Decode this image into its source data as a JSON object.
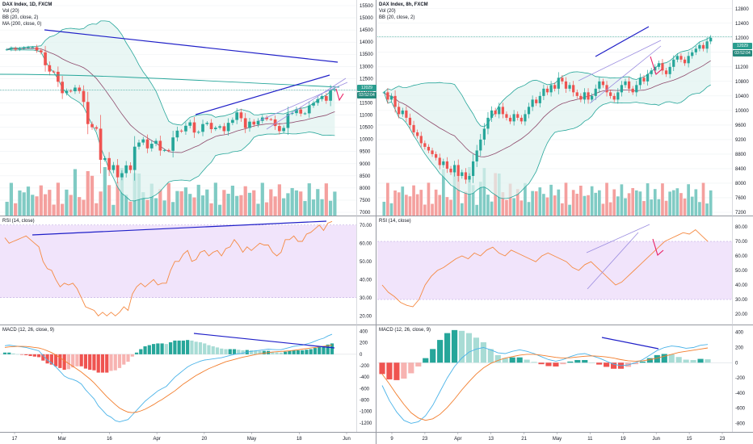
{
  "colors": {
    "up": "#26a69a",
    "down": "#ef5350",
    "vol_up": "#80cbc4",
    "vol_down": "#f4a09e",
    "bb_line": "#26a69a",
    "bb_fill": "#e0f2ef",
    "ma": "#8e4a6c",
    "trend": "#1f1fc8",
    "rsi": "#f58a42",
    "rsi_band": "#f1e4fb",
    "rsi_band_edge": "#b39ddb",
    "macd": "#4ab3e8",
    "signal": "#f27d2c",
    "hist_up": "#26a69a",
    "hist_up_light": "#a8dcd5",
    "hist_down": "#ef5350",
    "hist_down_light": "#f7b3b1",
    "grid": "#eef0f3",
    "separator": "#9598a1",
    "arrow": "#e91e63",
    "price_tag": "#2a9d8f"
  },
  "charts": [
    {
      "legend": {
        "title": "DAX Index, 1D, FXCM",
        "vol": "Vol (20)",
        "bb": "BB (20, close, 2)",
        "ma": "MA (200, close, 0)"
      },
      "price_tag": {
        "value": "12029",
        "time": "03:52:04"
      },
      "rsi_title": "RSI (14, close)",
      "macd_title": "MACD (12, 26, close, 9)",
      "x_ticks": [
        "17",
        "Mar",
        "16",
        "Apr",
        "20",
        "May",
        "18",
        "Jun"
      ],
      "price_ticks": [
        "15500",
        "15000",
        "14500",
        "14000",
        "13500",
        "13000",
        "12500",
        "12000",
        "11500",
        "11000",
        "10500",
        "10000",
        "9500",
        "9000",
        "8500",
        "8000",
        "7500",
        "7000"
      ],
      "rsi_ticks": [
        "70.00",
        "60.00",
        "50.00",
        "40.00",
        "30.00",
        "20.00"
      ],
      "macd_ticks": [
        "400",
        "200",
        "0",
        "-200",
        "-400",
        "-600",
        "-800",
        "-1000",
        "-1200"
      ]
    },
    {
      "legend": {
        "title": "DAX Index, 8h, FXCM",
        "vol": "Vol (20)",
        "bb": "BB (20, close, 2)"
      },
      "price_tag": {
        "value": "12029",
        "time": "03:52:04"
      },
      "rsi_title": "RSI (14, close)",
      "macd_title": "MACD (12, 26, close, 9)",
      "x_ticks": [
        "9",
        "23",
        "Apr",
        "13",
        "21",
        "May",
        "11",
        "19",
        "Jun",
        "15",
        "23"
      ],
      "price_ticks": [
        "12800",
        "12400",
        "12000",
        "11600",
        "11200",
        "10800",
        "10400",
        "10000",
        "9600",
        "9200",
        "8800",
        "8400",
        "8000",
        "7600",
        "7200"
      ],
      "rsi_ticks": [
        "80.00",
        "70.00",
        "60.00",
        "50.00",
        "40.00",
        "30.00",
        "20.00"
      ],
      "macd_ticks": [
        "400",
        "200",
        "0",
        "-200",
        "-400",
        "-600",
        "-800"
      ]
    }
  ],
  "chart_data": [
    {
      "type": "candlestick",
      "title": "DAX Index, 1D, FXCM",
      "x": [
        "2020-02-11",
        "2020-02-12",
        "2020-02-13",
        "2020-02-14",
        "2020-02-17",
        "2020-02-18",
        "2020-02-19",
        "2020-02-20",
        "2020-02-21",
        "2020-02-24",
        "2020-02-25",
        "2020-02-26",
        "2020-02-27",
        "2020-02-28",
        "2020-03-02",
        "2020-03-03",
        "2020-03-04",
        "2020-03-05",
        "2020-03-06",
        "2020-03-09",
        "2020-03-10",
        "2020-03-11",
        "2020-03-12",
        "2020-03-13",
        "2020-03-16",
        "2020-03-17",
        "2020-03-18",
        "2020-03-19",
        "2020-03-20",
        "2020-03-23",
        "2020-03-24",
        "2020-03-25",
        "2020-03-26",
        "2020-03-27",
        "2020-03-30",
        "2020-03-31",
        "2020-04-01",
        "2020-04-02",
        "2020-04-03",
        "2020-04-06",
        "2020-04-07",
        "2020-04-08",
        "2020-04-09",
        "2020-04-14",
        "2020-04-15",
        "2020-04-16",
        "2020-04-17",
        "2020-04-20",
        "2020-04-21",
        "2020-04-22",
        "2020-04-23",
        "2020-04-24",
        "2020-04-27",
        "2020-04-28",
        "2020-04-29",
        "2020-04-30",
        "2020-05-04",
        "2020-05-05",
        "2020-05-06",
        "2020-05-07",
        "2020-05-08",
        "2020-05-11",
        "2020-05-12",
        "2020-05-13",
        "2020-05-14",
        "2020-05-15",
        "2020-05-18",
        "2020-05-19",
        "2020-05-20",
        "2020-05-21",
        "2020-05-22",
        "2020-05-25",
        "2020-05-26",
        "2020-05-27",
        "2020-05-28",
        "2020-05-29",
        "2020-06-01",
        "2020-06-02"
      ],
      "close": [
        13700,
        13750,
        13700,
        13740,
        13770,
        13790,
        13790,
        13660,
        13580,
        13050,
        12790,
        12780,
        12370,
        11900,
        12000,
        11980,
        12130,
        11990,
        11540,
        10630,
        10500,
        10440,
        9160,
        9230,
        8740,
        8940,
        8440,
        8610,
        8930,
        8740,
        9700,
        9870,
        10000,
        9630,
        9820,
        9940,
        9540,
        9560,
        9530,
        10080,
        10360,
        10330,
        10560,
        10700,
        10280,
        10310,
        10630,
        10680,
        10420,
        10480,
        10540,
        10340,
        10680,
        10800,
        11110,
        10870,
        10470,
        10730,
        10610,
        10760,
        10900,
        10830,
        10820,
        10550,
        10340,
        10470,
        11060,
        11080,
        11230,
        11060,
        11070,
        11390,
        11500,
        11660,
        11780,
        11590,
        12020,
        12050
      ],
      "ylim": [
        7000,
        15600
      ],
      "volume_note": "volume bars shown, values not labelled",
      "bb": {
        "period": 20,
        "stdev": 2
      },
      "ma": {
        "period": 200
      },
      "price_tag": 12029,
      "annotations": [
        "descending trendline",
        "rising wedge",
        "red down arrow"
      ]
    },
    {
      "type": "candlestick",
      "title": "DAX Index, 8h, FXCM",
      "x_ticks": [
        "9",
        "23",
        "Apr",
        "13",
        "21",
        "May",
        "11",
        "19",
        "Jun",
        "15",
        "23"
      ],
      "close": [
        10500,
        10300,
        10400,
        10100,
        9900,
        10000,
        9800,
        9600,
        9400,
        9300,
        9100,
        9000,
        8900,
        8800,
        8700,
        8500,
        8600,
        8400,
        8300,
        8500,
        8200,
        8300,
        8100,
        8200,
        8600,
        8900,
        9200,
        9500,
        9800,
        10000,
        9900,
        10100,
        9900,
        9800,
        9700,
        9900,
        9800,
        9700,
        9900,
        10100,
        10300,
        10200,
        10400,
        10600,
        10500,
        10700,
        10600,
        10900,
        10800,
        10600,
        10700,
        10500,
        10400,
        10300,
        10500,
        10300,
        10400,
        10600,
        10800,
        10700,
        10500,
        10400,
        10300,
        10500,
        10700,
        10800,
        10600,
        10500,
        10700,
        10900,
        10800,
        11000,
        11100,
        11200,
        11300,
        11100,
        11000,
        11200,
        11400,
        11500,
        11400,
        11300,
        11500,
        11600,
        11700,
        11800,
        11700,
        11900,
        12000
      ],
      "ylim": [
        7200,
        12950
      ],
      "bb": {
        "period": 20,
        "stdev": 2
      },
      "price_tag": 12029
    },
    {
      "type": "line",
      "title": "RSI (14, close)",
      "panel": "1D",
      "y_range": [
        17,
        73
      ],
      "band": [
        30,
        70
      ],
      "values": [
        63,
        60,
        61,
        62,
        63,
        64,
        62,
        60,
        58,
        50,
        46,
        45,
        40,
        36,
        38,
        37,
        38,
        35,
        30,
        25,
        24,
        23,
        20,
        22,
        20,
        22,
        20,
        22,
        25,
        23,
        32,
        36,
        38,
        36,
        38,
        40,
        37,
        38,
        38,
        45,
        50,
        50,
        54,
        56,
        50,
        51,
        55,
        56,
        53,
        55,
        56,
        53,
        57,
        58,
        62,
        59,
        55,
        58,
        56,
        58,
        60,
        59,
        59,
        55,
        53,
        55,
        62,
        62,
        64,
        61,
        61,
        65,
        66,
        68,
        70,
        67,
        71,
        72
      ]
    },
    {
      "type": "line",
      "title": "RSI (14, close)",
      "panel": "8h",
      "y_range": [
        15,
        85
      ],
      "band": [
        30,
        70
      ],
      "values": [
        40,
        35,
        32,
        28,
        26,
        25,
        30,
        40,
        46,
        50,
        52,
        55,
        58,
        60,
        58,
        62,
        60,
        64,
        66,
        62,
        60,
        64,
        62,
        60,
        58,
        56,
        60,
        62,
        60,
        58,
        56,
        52,
        50,
        54,
        56,
        52,
        48,
        44,
        40,
        42,
        46,
        50,
        54,
        58,
        62,
        66,
        70,
        72,
        74,
        76,
        75,
        78,
        74,
        70
      ]
    },
    {
      "type": "line",
      "title": "MACD (12, 26, close, 9)",
      "panel": "1D",
      "y_range": [
        -1300,
        450
      ],
      "series_note": "MACD line, signal line and histogram",
      "macd": [
        150,
        160,
        150,
        140,
        130,
        120,
        100,
        80,
        60,
        -20,
        -100,
        -150,
        -220,
        -300,
        -380,
        -420,
        -440,
        -470,
        -520,
        -620,
        -700,
        -780,
        -900,
        -980,
        -1060,
        -1100,
        -1160,
        -1180,
        -1160,
        -1140,
        -1060,
        -980,
        -900,
        -820,
        -760,
        -700,
        -640,
        -600,
        -560,
        -480,
        -400,
        -340,
        -280,
        -220,
        -180,
        -150,
        -120,
        -100,
        -90,
        -80,
        -70,
        -60,
        -40,
        -20,
        0,
        10,
        20,
        40,
        50,
        60,
        70,
        80,
        90,
        85,
        80,
        80,
        100,
        120,
        140,
        150,
        160,
        180,
        200,
        230,
        260,
        280,
        320,
        350
      ],
      "signal": [
        120,
        130,
        135,
        138,
        138,
        136,
        130,
        120,
        110,
        90,
        60,
        30,
        -10,
        -60,
        -110,
        -160,
        -210,
        -260,
        -310,
        -370,
        -430,
        -500,
        -580,
        -660,
        -740,
        -810,
        -880,
        -940,
        -980,
        -1010,
        -1020,
        -1010,
        -990,
        -960,
        -920,
        -880,
        -830,
        -790,
        -740,
        -690,
        -640,
        -580,
        -520,
        -470,
        -420,
        -370,
        -330,
        -290,
        -250,
        -220,
        -190,
        -160,
        -130,
        -110,
        -90,
        -70,
        -50,
        -35,
        -20,
        -5,
        10,
        20,
        30,
        40,
        45,
        50,
        55,
        60,
        70,
        80,
        90,
        100,
        110,
        120,
        130,
        140,
        150,
        160
      ]
    },
    {
      "type": "line",
      "title": "MACD (12, 26, close, 9)",
      "panel": "8h",
      "y_range": [
        -870,
        450
      ],
      "series_note": "MACD line, signal line and histogram",
      "macd": [
        -300,
        -500,
        -650,
        -760,
        -800,
        -780,
        -700,
        -560,
        -380,
        -200,
        -50,
        60,
        140,
        180,
        200,
        170,
        130,
        120,
        150,
        170,
        150,
        120,
        80,
        40,
        20,
        40,
        80,
        110,
        120,
        90,
        60,
        20,
        -20,
        -40,
        -30,
        0,
        40,
        100,
        160,
        200,
        220,
        210,
        190,
        200,
        230,
        240
      ],
      "signal": [
        -150,
        -280,
        -420,
        -550,
        -660,
        -730,
        -760,
        -740,
        -680,
        -590,
        -480,
        -360,
        -250,
        -150,
        -70,
        -10,
        30,
        60,
        80,
        100,
        110,
        110,
        100,
        85,
        70,
        60,
        65,
        75,
        85,
        90,
        85,
        75,
        60,
        40,
        25,
        20,
        25,
        40,
        60,
        85,
        110,
        135,
        150,
        165,
        180,
        195
      ]
    }
  ]
}
